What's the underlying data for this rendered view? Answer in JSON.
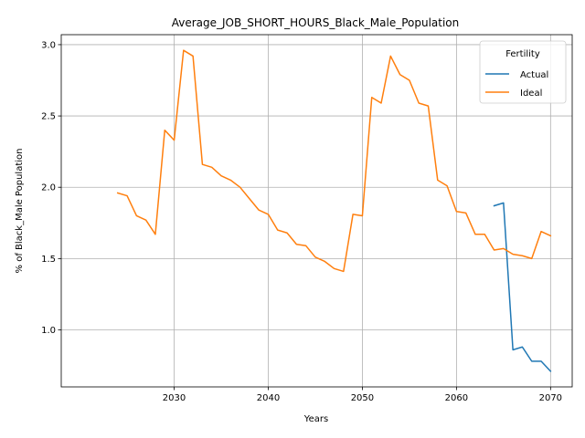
{
  "chart_data": {
    "type": "line",
    "title": "Average_JOB_SHORT_HOURS_Black_Male_Population",
    "xlabel": "Years",
    "ylabel": "% of Black_Male Population",
    "xlim": [
      2018,
      2072.3
    ],
    "ylim": [
      0.6,
      3.07
    ],
    "xticks": [
      2030,
      2040,
      2050,
      2060,
      2070
    ],
    "yticks": [
      1.0,
      1.5,
      2.0,
      2.5,
      3.0
    ],
    "grid": true,
    "legend": {
      "title": "Fertility",
      "placement": "top-right"
    },
    "series": [
      {
        "name": "Actual",
        "color": "#1f77b4",
        "x": [
          2064,
          2065,
          2066,
          2067,
          2068,
          2069,
          2070
        ],
        "y": [
          1.87,
          1.89,
          0.86,
          0.88,
          0.78,
          0.78,
          0.71
        ]
      },
      {
        "name": "Ideal",
        "color": "#ff7f0e",
        "x": [
          2024,
          2025,
          2026,
          2027,
          2028,
          2029,
          2030,
          2031,
          2032,
          2033,
          2034,
          2035,
          2036,
          2037,
          2038,
          2039,
          2040,
          2041,
          2042,
          2043,
          2044,
          2045,
          2046,
          2047,
          2048,
          2049,
          2050,
          2051,
          2052,
          2053,
          2054,
          2055,
          2056,
          2057,
          2058,
          2059,
          2060,
          2061,
          2062,
          2063,
          2064,
          2065,
          2066,
          2067,
          2068,
          2069,
          2070
        ],
        "y": [
          1.96,
          1.94,
          1.8,
          1.77,
          1.67,
          2.4,
          2.33,
          2.96,
          2.92,
          2.16,
          2.14,
          2.08,
          2.05,
          2.0,
          1.92,
          1.84,
          1.81,
          1.7,
          1.68,
          1.6,
          1.59,
          1.51,
          1.48,
          1.43,
          1.41,
          1.81,
          1.8,
          2.63,
          2.59,
          2.92,
          2.79,
          2.75,
          2.59,
          2.57,
          2.05,
          2.01,
          1.83,
          1.82,
          1.67,
          1.67,
          1.56,
          1.57,
          1.53,
          1.52,
          1.5,
          1.69,
          1.66
        ]
      }
    ]
  }
}
